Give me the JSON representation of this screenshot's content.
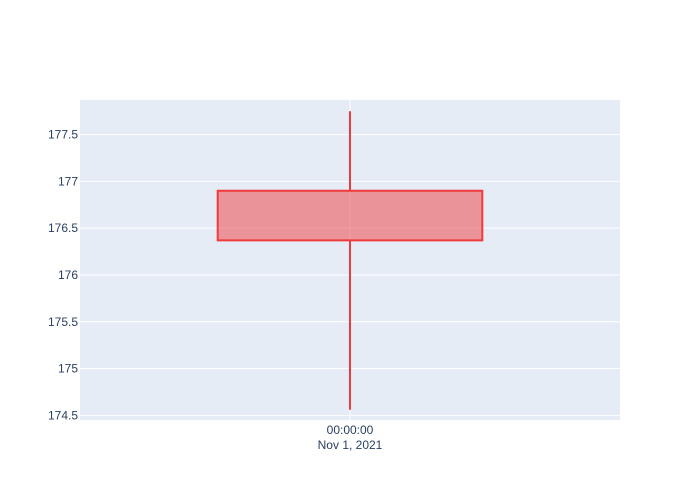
{
  "chart_data": {
    "type": "candlestick",
    "x_tick_time": "00:00:00",
    "x_tick_date": "Nov 1, 2021",
    "y_ticks": [
      "174.5",
      "175",
      "175.5",
      "176",
      "176.5",
      "177",
      "177.5"
    ],
    "ylim": [
      174.45,
      177.87
    ],
    "grid": true,
    "candles": [
      {
        "x": "2021-11-01 00:00:00",
        "open": 176.9,
        "high": 177.75,
        "low": 174.56,
        "close": 176.37,
        "direction": "decreasing"
      }
    ],
    "colors": {
      "decreasing_line": "#ef3b3b",
      "decreasing_fill": "rgba(239,59,59,0.5)",
      "plot_bg": "#e5ecf6",
      "grid": "#ffffff",
      "tick_text": "#2a3f5f"
    }
  }
}
